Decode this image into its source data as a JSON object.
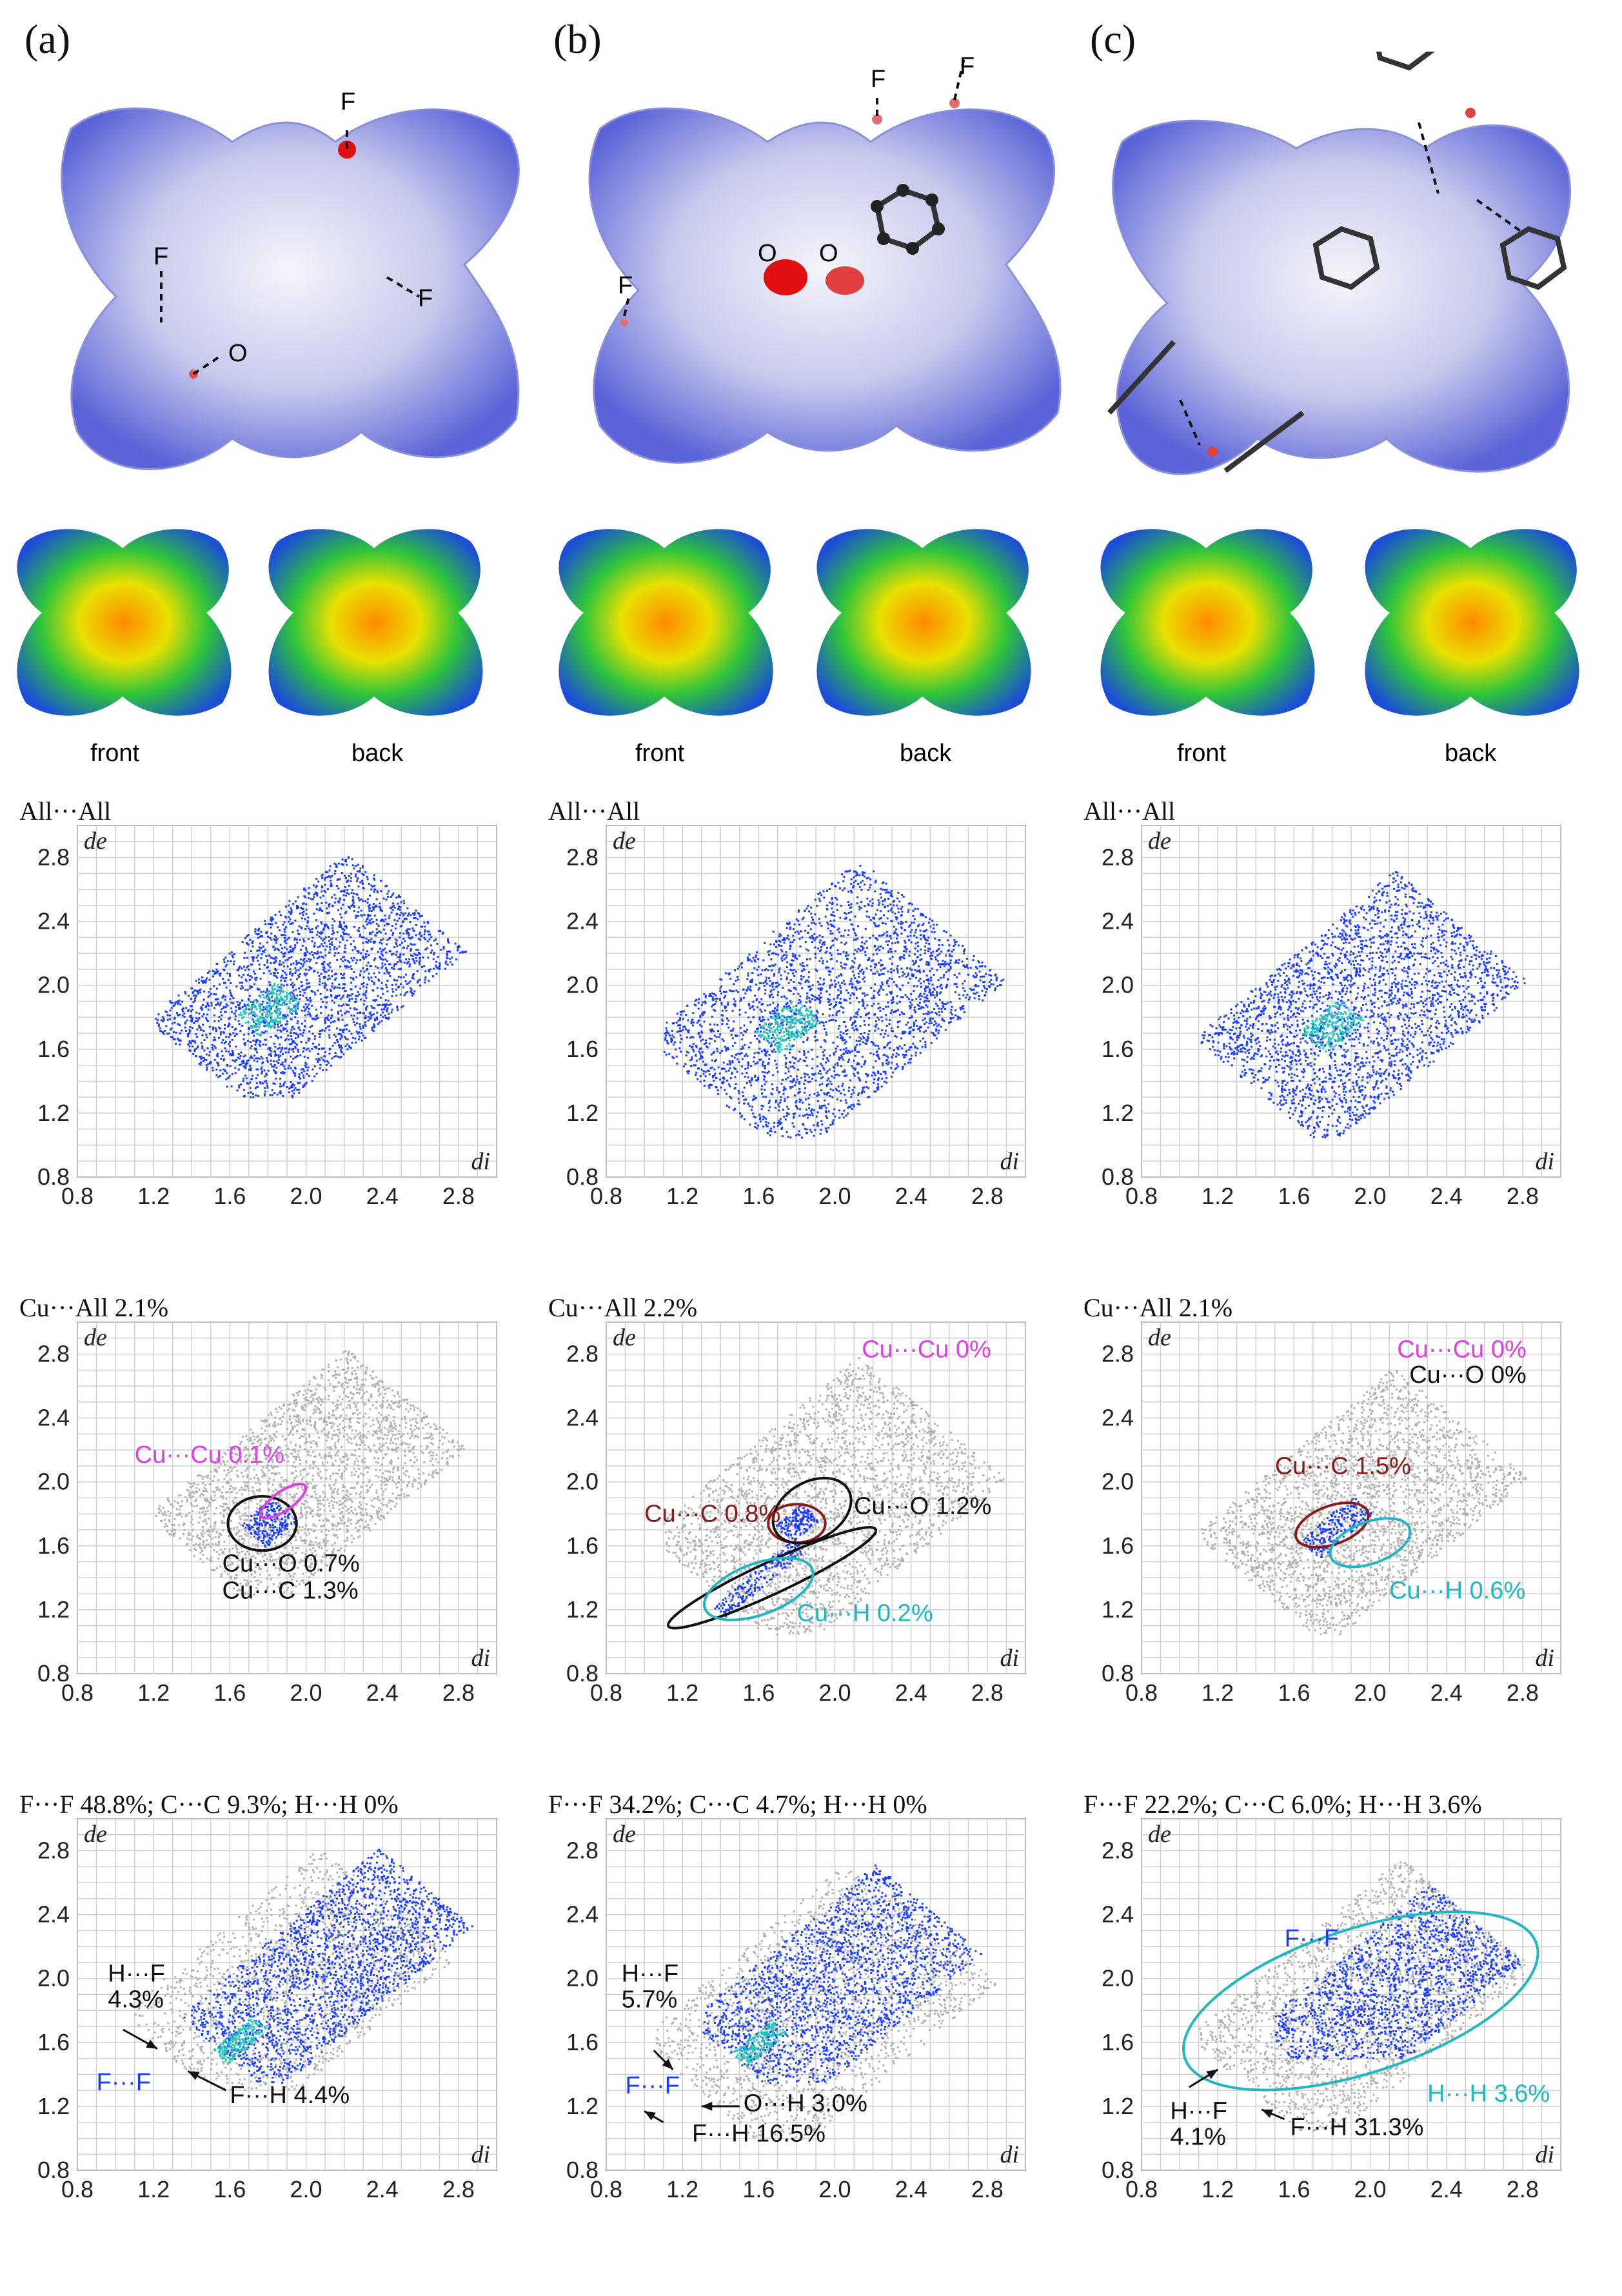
{
  "panels": [
    {
      "label": "(a)",
      "surface_labels": [
        "F",
        "F",
        "F",
        "O"
      ],
      "views": [
        "front",
        "back"
      ]
    },
    {
      "label": "(b)",
      "surface_labels": [
        "F",
        "F",
        "F",
        "O",
        "O"
      ],
      "views": [
        "front",
        "back"
      ]
    },
    {
      "label": "(c)",
      "surface_labels": [],
      "views": [
        "front",
        "back"
      ]
    }
  ],
  "colors": {
    "blue": "#1a3cff",
    "grey": "#b0b0b0",
    "magenta": "#e040e0",
    "darkred": "#8b1a1a",
    "cyan": "#20b8c0",
    "black": "#111111"
  },
  "chart_data": [
    {
      "type": "scatter",
      "id": "a1",
      "title": "All···All",
      "xlabel": "di",
      "ylabel": "de",
      "xlim": [
        0.8,
        3.0
      ],
      "ylim": [
        0.8,
        3.0
      ],
      "xticks": [
        "0.8",
        "1.2",
        "1.6",
        "2.0",
        "2.4",
        "2.8"
      ],
      "yticks": [
        "0.8",
        "1.2",
        "1.6",
        "2.0",
        "2.4",
        "2.8"
      ],
      "grid": true,
      "annotations": []
    },
    {
      "type": "scatter",
      "id": "b1",
      "title": "All···All",
      "xlabel": "di",
      "ylabel": "de",
      "xlim": [
        0.8,
        3.0
      ],
      "ylim": [
        0.8,
        3.0
      ],
      "xticks": [
        "0.8",
        "1.2",
        "1.6",
        "2.0",
        "2.4",
        "2.8"
      ],
      "yticks": [
        "0.8",
        "1.2",
        "1.6",
        "2.0",
        "2.4",
        "2.8"
      ],
      "grid": true,
      "annotations": []
    },
    {
      "type": "scatter",
      "id": "c1",
      "title": "All···All",
      "xlabel": "di",
      "ylabel": "de",
      "xlim": [
        0.8,
        3.0
      ],
      "ylim": [
        0.8,
        3.0
      ],
      "xticks": [
        "0.8",
        "1.2",
        "1.6",
        "2.0",
        "2.4",
        "2.8"
      ],
      "yticks": [
        "0.8",
        "1.2",
        "1.6",
        "2.0",
        "2.4",
        "2.8"
      ],
      "grid": true,
      "annotations": []
    },
    {
      "type": "scatter",
      "id": "a2",
      "title": "Cu···All 2.1%",
      "xlabel": "di",
      "ylabel": "de",
      "xlim": [
        0.8,
        3.0
      ],
      "ylim": [
        0.8,
        3.0
      ],
      "xticks": [
        "0.8",
        "1.2",
        "1.6",
        "2.0",
        "2.4",
        "2.8"
      ],
      "yticks": [
        "0.8",
        "1.2",
        "1.6",
        "2.0",
        "2.4",
        "2.8"
      ],
      "grid": true,
      "annotations": [
        {
          "text": "Cu···Cu 0.1%",
          "color": "magenta"
        },
        {
          "text": "Cu···O 0.7%",
          "color": "black"
        },
        {
          "text": "Cu···C 1.3%",
          "color": "black"
        }
      ]
    },
    {
      "type": "scatter",
      "id": "b2",
      "title": "Cu···All 2.2%",
      "xlabel": "di",
      "ylabel": "de",
      "xlim": [
        0.8,
        3.0
      ],
      "ylim": [
        0.8,
        3.0
      ],
      "xticks": [
        "0.8",
        "1.2",
        "1.6",
        "2.0",
        "2.4",
        "2.8"
      ],
      "yticks": [
        "0.8",
        "1.2",
        "1.6",
        "2.0",
        "2.4",
        "2.8"
      ],
      "grid": true,
      "annotations": [
        {
          "text": "Cu···Cu 0%",
          "color": "magenta"
        },
        {
          "text": "Cu···C 0.8%",
          "color": "darkred"
        },
        {
          "text": "Cu···O 1.2%",
          "color": "black"
        },
        {
          "text": "Cu···H 0.2%",
          "color": "cyan"
        }
      ]
    },
    {
      "type": "scatter",
      "id": "c2",
      "title": "Cu···All 2.1%",
      "xlabel": "di",
      "ylabel": "de",
      "xlim": [
        0.8,
        3.0
      ],
      "ylim": [
        0.8,
        3.0
      ],
      "xticks": [
        "0.8",
        "1.2",
        "1.6",
        "2.0",
        "2.4",
        "2.8"
      ],
      "yticks": [
        "0.8",
        "1.2",
        "1.6",
        "2.0",
        "2.4",
        "2.8"
      ],
      "grid": true,
      "annotations": [
        {
          "text": "Cu···Cu 0%",
          "color": "magenta"
        },
        {
          "text": "Cu···O 0%",
          "color": "black"
        },
        {
          "text": "Cu···C 1.5%",
          "color": "darkred"
        },
        {
          "text": "Cu···H 0.6%",
          "color": "cyan"
        }
      ]
    },
    {
      "type": "scatter",
      "id": "a3",
      "title": "F···F 48.8%; C···C 9.3%; H···H 0%",
      "xlabel": "di",
      "ylabel": "de",
      "xlim": [
        0.8,
        3.0
      ],
      "ylim": [
        0.8,
        3.0
      ],
      "xticks": [
        "0.8",
        "1.2",
        "1.6",
        "2.0",
        "2.4",
        "2.8"
      ],
      "yticks": [
        "0.8",
        "1.2",
        "1.6",
        "2.0",
        "2.4",
        "2.8"
      ],
      "grid": true,
      "annotations": [
        {
          "text": "H···F",
          "color": "black"
        },
        {
          "text": "4.3%",
          "color": "black"
        },
        {
          "text": "F···F",
          "color": "blue"
        },
        {
          "text": "F···H 4.4%",
          "color": "black"
        }
      ]
    },
    {
      "type": "scatter",
      "id": "b3",
      "title": "F···F 34.2%; C···C 4.7%; H···H 0%",
      "xlabel": "di",
      "ylabel": "de",
      "xlim": [
        0.8,
        3.0
      ],
      "ylim": [
        0.8,
        3.0
      ],
      "xticks": [
        "0.8",
        "1.2",
        "1.6",
        "2.0",
        "2.4",
        "2.8"
      ],
      "yticks": [
        "0.8",
        "1.2",
        "1.6",
        "2.0",
        "2.4",
        "2.8"
      ],
      "grid": true,
      "annotations": [
        {
          "text": "H···F",
          "color": "black"
        },
        {
          "text": "5.7%",
          "color": "black"
        },
        {
          "text": "F···F",
          "color": "blue"
        },
        {
          "text": "O···H 3.0%",
          "color": "black"
        },
        {
          "text": "F···H 16.5%",
          "color": "black"
        }
      ]
    },
    {
      "type": "scatter",
      "id": "c3",
      "title": "F···F 22.2%; C···C 6.0%; H···H 3.6%",
      "xlabel": "di",
      "ylabel": "de",
      "xlim": [
        0.8,
        3.0
      ],
      "ylim": [
        0.8,
        3.0
      ],
      "xticks": [
        "0.8",
        "1.2",
        "1.6",
        "2.0",
        "2.4",
        "2.8"
      ],
      "yticks": [
        "0.8",
        "1.2",
        "1.6",
        "2.0",
        "2.4",
        "2.8"
      ],
      "grid": true,
      "annotations": [
        {
          "text": "F···F",
          "color": "blue"
        },
        {
          "text": "H···H 3.6%",
          "color": "cyan"
        },
        {
          "text": "H···F",
          "color": "black"
        },
        {
          "text": "4.1%",
          "color": "black"
        },
        {
          "text": "F···H 31.3%",
          "color": "black"
        }
      ]
    }
  ]
}
